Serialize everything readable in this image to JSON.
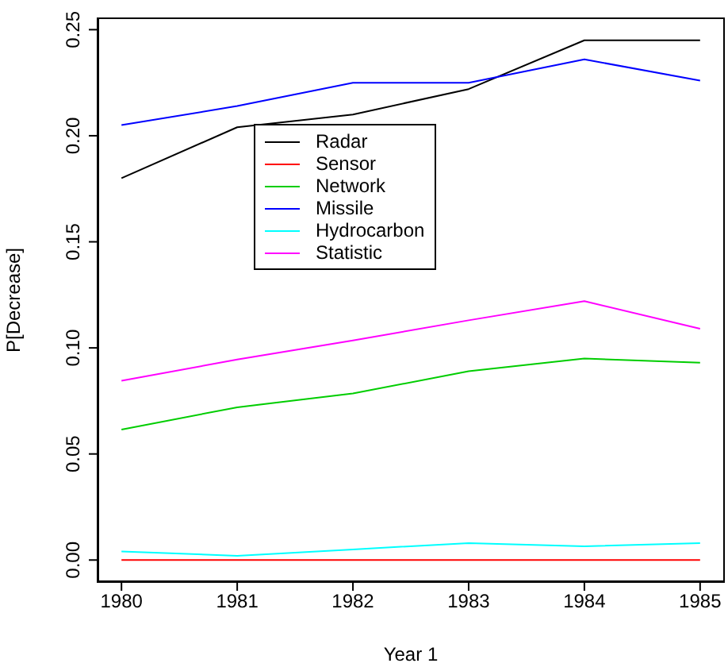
{
  "chart_data": {
    "type": "line",
    "xlabel": "Year 1",
    "ylabel": "P[Decrease]",
    "x": [
      1980,
      1981,
      1982,
      1983,
      1984,
      1985
    ],
    "xlim": [
      1979.8,
      1985.2
    ],
    "xticks": [
      1980,
      1981,
      1982,
      1983,
      1984,
      1985
    ],
    "ylim": [
      -0.01,
      0.255
    ],
    "yticks": [
      {
        "value": 0,
        "label": "0.00"
      },
      {
        "value": 0.05,
        "label": "0.05"
      },
      {
        "value": 0.1,
        "label": "0.10"
      },
      {
        "value": 0.15,
        "label": "0.15"
      },
      {
        "value": 0.2,
        "label": "0.20"
      },
      {
        "value": 0.25,
        "label": "0.25"
      }
    ],
    "grid": false,
    "legend": "top",
    "marker": "none",
    "line_style": "solid",
    "series": [
      {
        "name": "Radar",
        "color": "#000000",
        "values": [
          0.18,
          0.204,
          0.21,
          0.222,
          0.245,
          0.245
        ]
      },
      {
        "name": "Sensor",
        "color": "#ff0000",
        "values": [
          0,
          0,
          0,
          0,
          0,
          0
        ]
      },
      {
        "name": "Network",
        "color": "#00cd00",
        "values": [
          0.0615,
          0.072,
          0.0785,
          0.089,
          0.095,
          0.093
        ]
      },
      {
        "name": "Missile",
        "color": "#0000ff",
        "values": [
          0.205,
          0.214,
          0.225,
          0.225,
          0.236,
          0.226
        ]
      },
      {
        "name": "Hydrocarbon",
        "color": "#00ffff",
        "values": [
          0.004,
          0.002,
          0.005,
          0.008,
          0.0065,
          0.008
        ]
      },
      {
        "name": "Statistic",
        "color": "#ff00ff",
        "values": [
          0.0845,
          0.0945,
          0.1035,
          0.113,
          0.122,
          0.109
        ]
      }
    ]
  }
}
